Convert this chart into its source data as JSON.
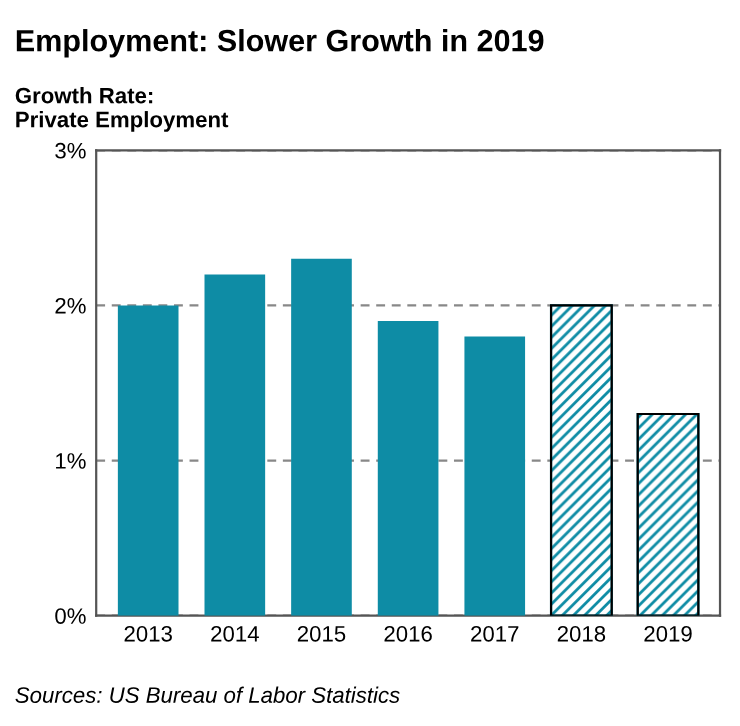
{
  "chart_data": {
    "type": "bar",
    "title": "Employment: Slower Growth in 2019",
    "ylabel": "Growth Rate:\nPrivate Employment",
    "categories": [
      "2013",
      "2014",
      "2015",
      "2016",
      "2017",
      "2018",
      "2019"
    ],
    "series": [
      {
        "color": "#0e8ca5",
        "values": [
          2.0,
          2.2,
          2.3,
          1.9,
          1.8,
          null,
          null
        ]
      },
      {
        "color": "#0e8ca5",
        "values": [
          null,
          null,
          null,
          null,
          null,
          2.0,
          1.3
        ]
      }
    ],
    "ylim": [
      0,
      3
    ],
    "yticks": [
      {
        "value": 0,
        "label": "0%"
      },
      {
        "value": 1,
        "label": "1%"
      },
      {
        "value": 2,
        "label": "2%"
      },
      {
        "value": 3,
        "label": "3%"
      }
    ],
    "grid": "y",
    "annotations": [
      "Sources: US Bureau of Labor Statistics"
    ]
  }
}
